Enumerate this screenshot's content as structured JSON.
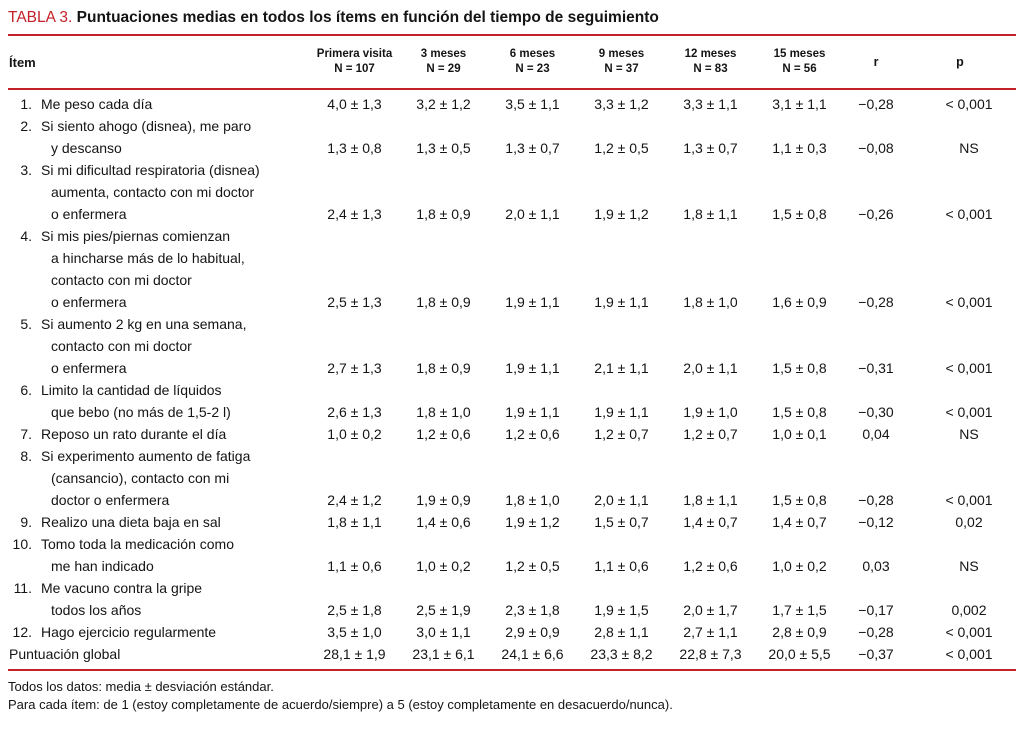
{
  "title": {
    "label": "TABLA 3.",
    "text": "Puntuaciones medias en todos los ítems en función del tiempo de seguimiento"
  },
  "colors": {
    "accent": "#c32127"
  },
  "header": {
    "item": "Ítem",
    "r": "r",
    "p": "p",
    "cols": [
      {
        "label": "Primera visita",
        "n": "N = 107"
      },
      {
        "label": "3 meses",
        "n": "N = 29"
      },
      {
        "label": "6 meses",
        "n": "N = 23"
      },
      {
        "label": "9 meses",
        "n": "N = 37"
      },
      {
        "label": "12 meses",
        "n": "N = 83"
      },
      {
        "label": "15 meses",
        "n": "N = 56"
      }
    ]
  },
  "rows": [
    {
      "num": "1.",
      "lines": [
        "Me peso cada día"
      ],
      "values": [
        "4,0 ± 1,3",
        "3,2 ± 1,2",
        "3,5 ± 1,1",
        "3,3 ± 1,2",
        "3,3 ± 1,1",
        "3,1 ± 1,1"
      ],
      "r": "−0,28",
      "p": "< 0,001"
    },
    {
      "num": "2.",
      "lines": [
        "Si siento ahogo (disnea), me paro",
        "y descanso"
      ],
      "values": [
        "1,3 ± 0,8",
        "1,3 ± 0,5",
        "1,3 ± 0,7",
        "1,2 ± 0,5",
        "1,3 ± 0,7",
        "1,1 ± 0,3"
      ],
      "r": "−0,08",
      "p": "NS"
    },
    {
      "num": "3.",
      "lines": [
        "Si mi dificultad respiratoria (disnea)",
        "aumenta, contacto con mi doctor",
        "o enfermera"
      ],
      "values": [
        "2,4 ± 1,3",
        "1,8 ± 0,9",
        "2,0 ± 1,1",
        "1,9 ± 1,2",
        "1,8 ± 1,1",
        "1,5 ± 0,8"
      ],
      "r": "−0,26",
      "p": "< 0,001"
    },
    {
      "num": "4.",
      "lines": [
        "Si mis pies/piernas comienzan",
        "a hincharse más de lo habitual,",
        "contacto con mi doctor",
        "o enfermera"
      ],
      "values": [
        "2,5 ± 1,3",
        "1,8 ± 0,9",
        "1,9 ± 1,1",
        "1,9 ± 1,1",
        "1,8 ± 1,0",
        "1,6 ± 0,9"
      ],
      "r": "−0,28",
      "p": "< 0,001"
    },
    {
      "num": "5.",
      "lines": [
        "Si aumento 2 kg en una semana,",
        "contacto con mi doctor",
        "o enfermera"
      ],
      "values": [
        "2,7 ± 1,3",
        "1,8 ± 0,9",
        "1,9 ± 1,1",
        "2,1 ± 1,1",
        "2,0 ± 1,1",
        "1,5 ± 0,8"
      ],
      "r": "−0,31",
      "p": "< 0,001"
    },
    {
      "num": "6.",
      "lines": [
        "Limito la cantidad de líquidos",
        "que bebo (no más de 1,5-2 l)"
      ],
      "values": [
        "2,6 ± 1,3",
        "1,8 ± 1,0",
        "1,9 ± 1,1",
        "1,9 ± 1,1",
        "1,9 ± 1,0",
        "1,5 ± 0,8"
      ],
      "r": "−0,30",
      "p": "< 0,001"
    },
    {
      "num": "7.",
      "lines": [
        "Reposo un rato durante el día"
      ],
      "values": [
        "1,0 ± 0,2",
        "1,2 ± 0,6",
        "1,2 ± 0,6",
        "1,2 ± 0,7",
        "1,2 ± 0,7",
        "1,0 ± 0,1"
      ],
      "r": "0,04",
      "p": "NS"
    },
    {
      "num": "8.",
      "lines": [
        "Si experimento aumento de fatiga",
        "(cansancio), contacto con mi",
        "doctor o enfermera"
      ],
      "values": [
        "2,4 ± 1,2",
        "1,9 ± 0,9",
        "1,8 ± 1,0",
        "2,0 ± 1,1",
        "1,8 ± 1,1",
        "1,5 ± 0,8"
      ],
      "r": "−0,28",
      "p": "< 0,001"
    },
    {
      "num": "9.",
      "lines": [
        "Realizo una dieta baja en sal"
      ],
      "values": [
        "1,8 ± 1,1",
        "1,4 ± 0,6",
        "1,9 ± 1,2",
        "1,5 ± 0,7",
        "1,4 ± 0,7",
        "1,4 ± 0,7"
      ],
      "r": "−0,12",
      "p": "0,02"
    },
    {
      "num": "10.",
      "lines": [
        "Tomo toda la medicación como",
        "me han indicado"
      ],
      "values": [
        "1,1 ± 0,6",
        "1,0 ± 0,2",
        "1,2 ± 0,5",
        "1,1 ± 0,6",
        "1,2 ± 0,6",
        "1,0 ± 0,2"
      ],
      "r": "0,03",
      "p": "NS"
    },
    {
      "num": "11.",
      "lines": [
        "Me vacuno contra la gripe",
        "todos los años"
      ],
      "values": [
        "2,5 ± 1,8",
        "2,5 ± 1,9",
        "2,3 ± 1,8",
        "1,9 ± 1,5",
        "2,0 ± 1,7",
        "1,7 ± 1,5"
      ],
      "r": "−0,17",
      "p": "0,002"
    },
    {
      "num": "12.",
      "lines": [
        "Hago ejercicio regularmente"
      ],
      "values": [
        "3,5 ± 1,0",
        "3,0 ± 1,1",
        "2,9 ± 0,9",
        "2,8 ± 1,1",
        "2,7 ± 1,1",
        "2,8 ± 0,9"
      ],
      "r": "−0,28",
      "p": "< 0,001"
    },
    {
      "num": "",
      "flush": true,
      "lines": [
        "Puntuación global"
      ],
      "values": [
        "28,1 ± 1,9",
        "23,1 ± 6,1",
        "24,1 ± 6,6",
        "23,3 ± 8,2",
        "22,8 ± 7,3",
        "20,0 ± 5,5"
      ],
      "r": "−0,37",
      "p": "< 0,001"
    }
  ],
  "footnotes": [
    "Todos los datos: media ± desviación estándar.",
    "Para cada ítem: de 1 (estoy completamente de acuerdo/siempre) a 5 (estoy completamente en desacuerdo/nunca)."
  ]
}
